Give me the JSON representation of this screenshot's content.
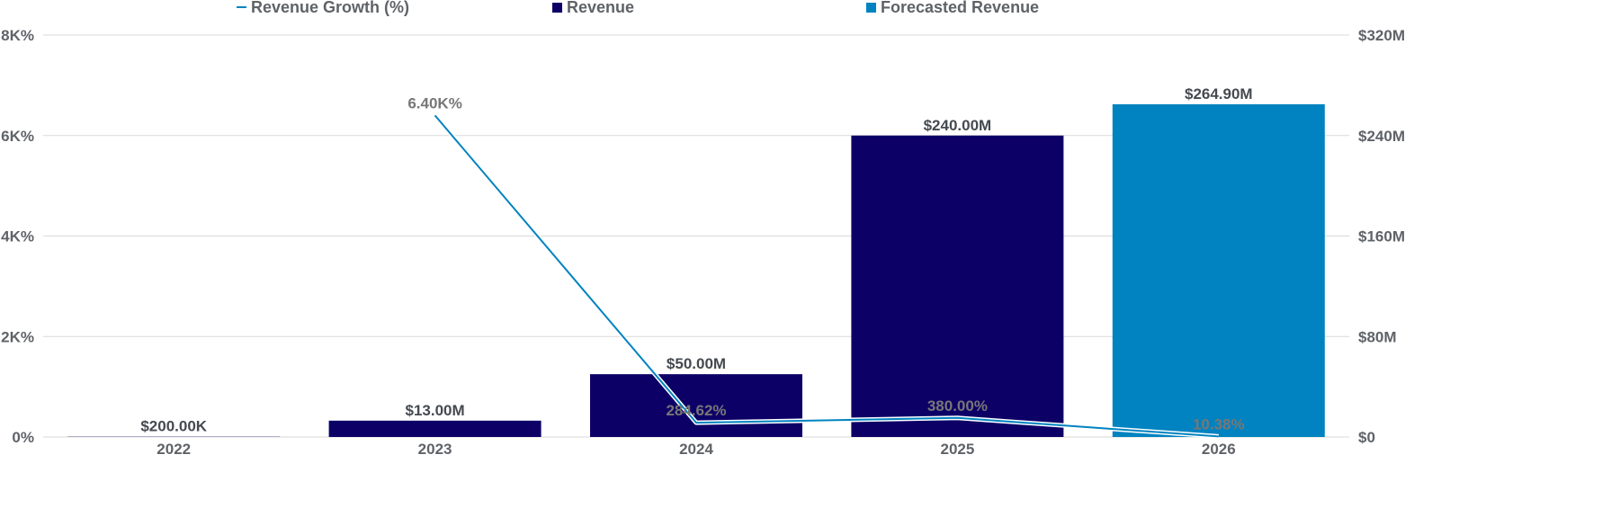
{
  "chart_data": {
    "type": "bar",
    "categories": [
      "2022",
      "2023",
      "2024",
      "2025",
      "2026"
    ],
    "series": [
      {
        "name": "Revenue Growth (%)",
        "kind": "line",
        "axis": "left",
        "values": [
          null,
          6400,
          284.62,
          380.0,
          10.38
        ],
        "labels": [
          "",
          "6.40K%",
          "284.62%",
          "380.00%",
          "10.38%"
        ],
        "color": "#0083c0"
      },
      {
        "name": "Revenue",
        "kind": "bar",
        "axis": "right",
        "values": [
          0.2,
          13,
          50,
          240,
          null
        ],
        "labels": [
          "$200.00K",
          "$13.00M",
          "$50.00M",
          "$240.00M",
          ""
        ],
        "color": "#0c0066"
      },
      {
        "name": "Forecasted Revenue",
        "kind": "bar",
        "axis": "right",
        "values": [
          null,
          null,
          null,
          null,
          264.9
        ],
        "labels": [
          "",
          "",
          "",
          "",
          "$264.90M"
        ],
        "color": "#0083c0"
      }
    ],
    "y_left": {
      "ylim": [
        0,
        8000
      ],
      "ticks": [
        0,
        2000,
        4000,
        6000,
        8000
      ],
      "tick_labels": [
        "0%",
        "2K%",
        "4K%",
        "6K%",
        "8K%"
      ]
    },
    "y_right": {
      "ylim": [
        0,
        320
      ],
      "unit": "$M",
      "ticks": [
        0,
        80,
        160,
        240,
        320
      ],
      "tick_labels": [
        "$0",
        "$80M",
        "$160M",
        "$240M",
        "$320M"
      ]
    },
    "grid": true,
    "legend_position": "top"
  }
}
